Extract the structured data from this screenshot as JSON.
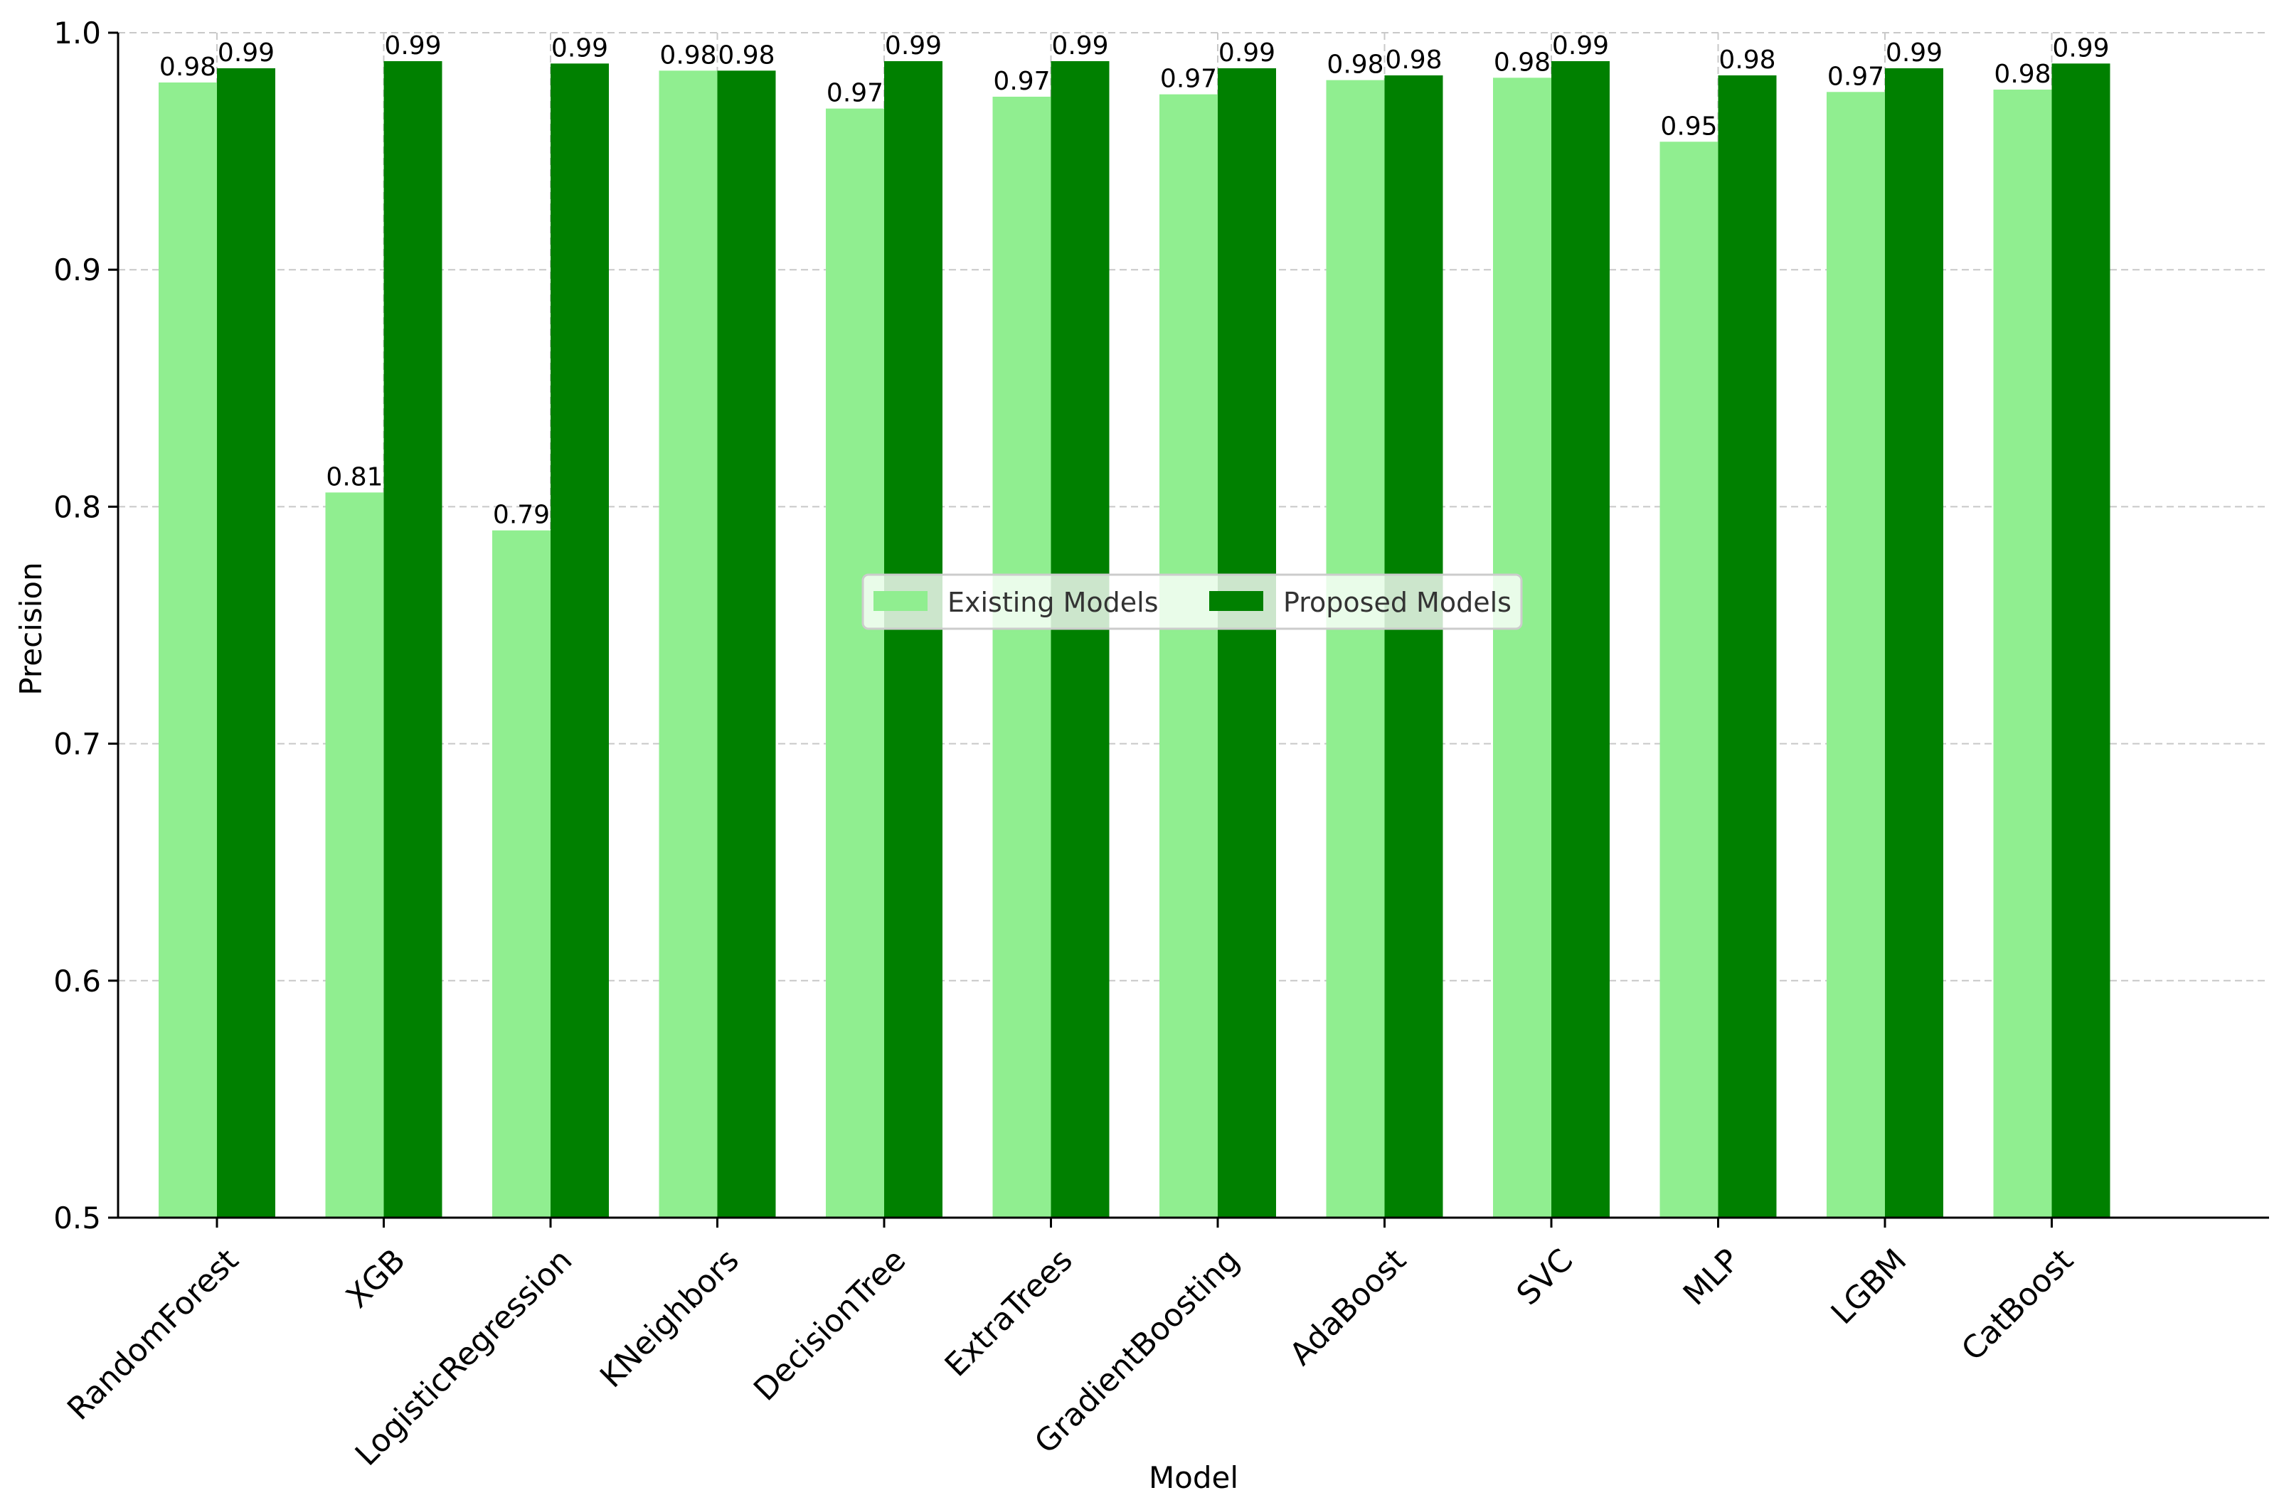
{
  "chart_data": {
    "type": "bar",
    "title": "",
    "xlabel": "Model",
    "ylabel": "Precision",
    "ylim": [
      0.5,
      1.0
    ],
    "yticks": [
      0.5,
      0.6,
      0.7,
      0.8,
      0.9,
      1.0
    ],
    "ytick_labels": [
      "0.5",
      "0.6",
      "0.7",
      "0.8",
      "0.9",
      "1.0"
    ],
    "grid": true,
    "legend_position": "center",
    "categories": [
      "RandomForest",
      "XGB",
      "LogisticRegression",
      "KNeighbors",
      "DecisionTree",
      "ExtraTrees",
      "GradientBoosting",
      "AdaBoost",
      "SVC",
      "MLP",
      "LGBM",
      "CatBoost"
    ],
    "series": [
      {
        "name": "Existing Models",
        "color": "#90ee90",
        "values": [
          0.979,
          0.806,
          0.79,
          0.984,
          0.968,
          0.973,
          0.974,
          0.98,
          0.981,
          0.954,
          0.975,
          0.976
        ],
        "labels": [
          "0.98",
          "0.81",
          "0.79",
          "0.98",
          "0.97",
          "0.97",
          "0.97",
          "0.98",
          "0.98",
          "0.95",
          "0.97",
          "0.98"
        ]
      },
      {
        "name": "Proposed Models",
        "color": "#008000",
        "values": [
          0.985,
          0.988,
          0.987,
          0.984,
          0.988,
          0.988,
          0.985,
          0.982,
          0.988,
          0.982,
          0.985,
          0.987
        ],
        "labels": [
          "0.99",
          "0.99",
          "0.99",
          "0.98",
          "0.99",
          "0.99",
          "0.99",
          "0.98",
          "0.99",
          "0.98",
          "0.99",
          "0.99"
        ]
      }
    ]
  }
}
